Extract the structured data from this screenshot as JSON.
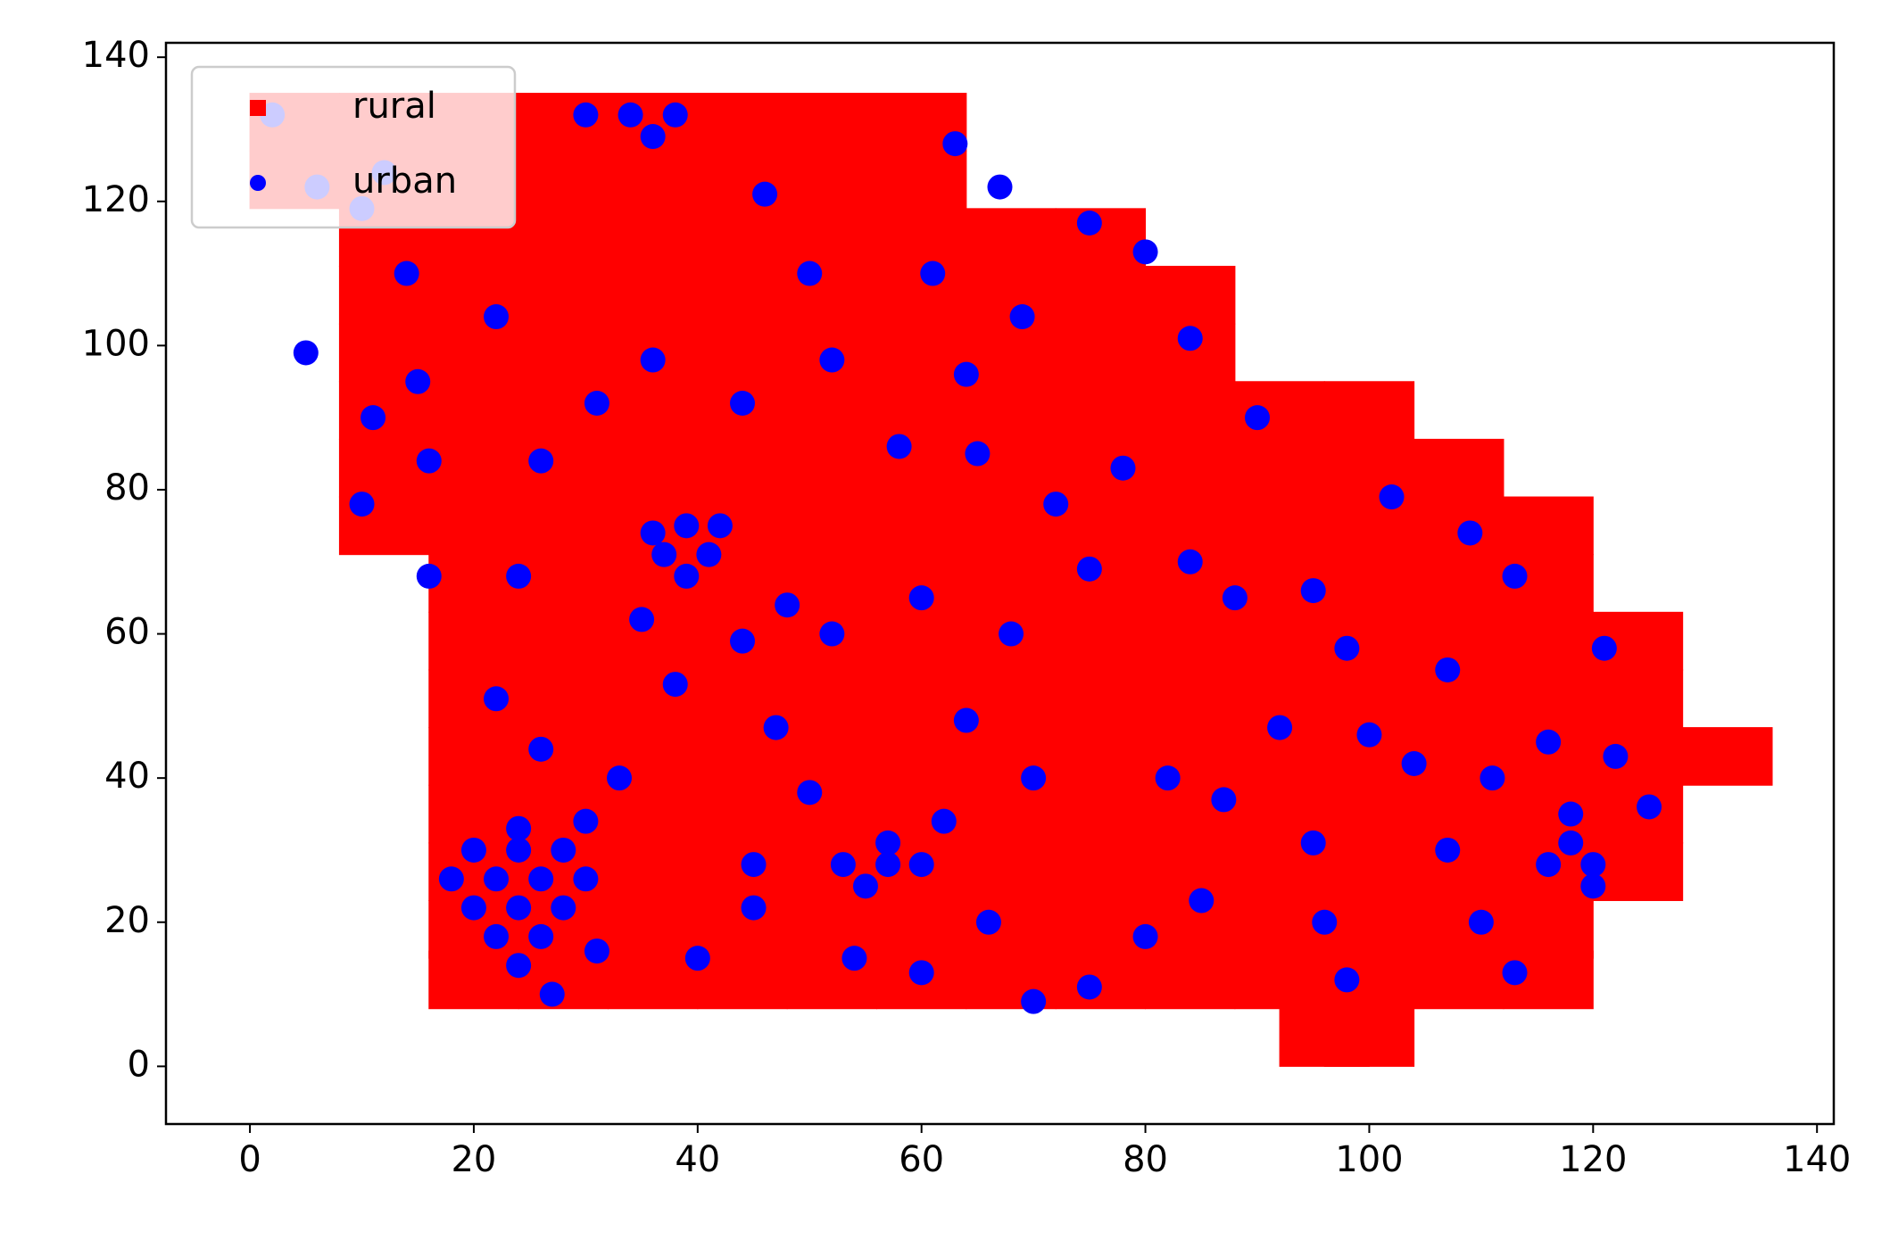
{
  "chart_data": {
    "type": "scatter",
    "xlim": [
      -7.5,
      141.5
    ],
    "ylim": [
      -8,
      142
    ],
    "xticks": [
      0,
      20,
      40,
      60,
      80,
      100,
      120,
      140
    ],
    "yticks": [
      0,
      20,
      40,
      60,
      80,
      100,
      120,
      140
    ],
    "legend": "upper left",
    "series": [
      {
        "name": "rural",
        "color": "#ff0000",
        "marker": "square",
        "x": [
          4,
          12,
          20,
          28,
          36,
          44,
          52,
          60,
          4,
          12,
          20,
          28,
          36,
          44,
          52,
          60,
          12,
          20,
          28,
          36,
          44,
          52,
          60,
          68,
          76,
          12,
          20,
          28,
          36,
          44,
          52,
          60,
          68,
          76,
          84,
          12,
          20,
          28,
          36,
          44,
          52,
          60,
          68,
          76,
          84,
          12,
          20,
          28,
          36,
          44,
          52,
          60,
          68,
          76,
          84,
          92,
          100,
          12,
          20,
          28,
          36,
          44,
          52,
          60,
          68,
          76,
          84,
          92,
          100,
          108,
          12,
          20,
          28,
          36,
          44,
          52,
          60,
          68,
          76,
          84,
          92,
          100,
          108,
          116,
          20,
          28,
          36,
          44,
          52,
          60,
          68,
          76,
          84,
          92,
          100,
          108,
          116,
          20,
          28,
          36,
          44,
          52,
          60,
          68,
          76,
          84,
          92,
          100,
          108,
          116,
          124,
          20,
          28,
          36,
          44,
          52,
          60,
          68,
          76,
          84,
          92,
          100,
          108,
          116,
          124,
          20,
          28,
          36,
          44,
          52,
          60,
          68,
          76,
          84,
          92,
          100,
          108,
          116,
          124,
          132,
          20,
          28,
          36,
          44,
          52,
          60,
          68,
          76,
          84,
          92,
          100,
          108,
          116,
          124,
          20,
          28,
          36,
          44,
          52,
          60,
          68,
          76,
          84,
          92,
          100,
          108,
          116,
          124,
          20,
          28,
          36,
          44,
          52,
          60,
          68,
          76,
          84,
          92,
          100,
          108,
          116,
          20,
          28,
          36,
          44,
          52,
          60,
          68,
          76,
          84,
          92,
          100,
          108,
          116,
          96,
          100
        ],
        "y": [
          131,
          131,
          131,
          131,
          131,
          131,
          131,
          131,
          123,
          123,
          123,
          123,
          123,
          123,
          123,
          123,
          115,
          115,
          115,
          115,
          115,
          115,
          115,
          115,
          115,
          107,
          107,
          107,
          107,
          107,
          107,
          107,
          107,
          107,
          107,
          99,
          99,
          99,
          99,
          99,
          99,
          99,
          99,
          99,
          99,
          91,
          91,
          91,
          91,
          91,
          91,
          91,
          91,
          91,
          91,
          91,
          91,
          83,
          83,
          83,
          83,
          83,
          83,
          83,
          83,
          83,
          83,
          83,
          83,
          83,
          75,
          75,
          75,
          75,
          75,
          75,
          75,
          75,
          75,
          75,
          75,
          75,
          75,
          75,
          67,
          67,
          67,
          67,
          67,
          67,
          67,
          67,
          67,
          67,
          67,
          67,
          67,
          59,
          59,
          59,
          59,
          59,
          59,
          59,
          59,
          59,
          59,
          59,
          59,
          59,
          59,
          51,
          51,
          51,
          51,
          51,
          51,
          51,
          51,
          51,
          51,
          51,
          51,
          51,
          51,
          43,
          43,
          43,
          43,
          43,
          43,
          43,
          43,
          43,
          43,
          43,
          43,
          43,
          43,
          43,
          35,
          35,
          35,
          35,
          35,
          35,
          35,
          35,
          35,
          35,
          35,
          35,
          35,
          35,
          27,
          27,
          27,
          27,
          27,
          27,
          27,
          27,
          27,
          27,
          27,
          27,
          27,
          27,
          19,
          19,
          19,
          19,
          19,
          19,
          19,
          19,
          19,
          19,
          19,
          19,
          19,
          12,
          12,
          12,
          12,
          12,
          12,
          12,
          12,
          12,
          12,
          12,
          12,
          12,
          4,
          4
        ]
      },
      {
        "name": "urban",
        "color": "#0000ff",
        "marker": "circle",
        "x": [
          20,
          24,
          28,
          18,
          22,
          26,
          30,
          20,
          24,
          28,
          22,
          26,
          24,
          24,
          37,
          41,
          39,
          39,
          36,
          42,
          53,
          57,
          60,
          55,
          57,
          116,
          120,
          118,
          120,
          118,
          30,
          34,
          38,
          36,
          2,
          6,
          12,
          10,
          5,
          14,
          22,
          15,
          11,
          10,
          16,
          26,
          16,
          24,
          22,
          26,
          33,
          30,
          31,
          27,
          45,
          40,
          45,
          35,
          44,
          48,
          52,
          50,
          47,
          38,
          31,
          36,
          44,
          52,
          50,
          46,
          61,
          64,
          69,
          67,
          63,
          75,
          80,
          84,
          90,
          84,
          75,
          78,
          88,
          92,
          98,
          100,
          95,
          102,
          109,
          113,
          121,
          107,
          104,
          111,
          116,
          122,
          125,
          107,
          110,
          113,
          98,
          96,
          85,
          80,
          75,
          70,
          64,
          62,
          66,
          70,
          60,
          54,
          82,
          87,
          95,
          68,
          60,
          72,
          65,
          58
        ],
        "y": [
          22,
          22,
          22,
          26,
          26,
          26,
          26,
          30,
          30,
          30,
          18,
          18,
          33,
          14,
          71,
          71,
          75,
          68,
          74,
          75,
          28,
          28,
          28,
          25,
          31,
          28,
          28,
          31,
          25,
          35,
          132,
          132,
          132,
          129,
          132,
          122,
          124,
          119,
          99,
          110,
          104,
          95,
          90,
          78,
          84,
          84,
          68,
          68,
          51,
          44,
          40,
          34,
          16,
          10,
          28,
          15,
          22,
          62,
          59,
          64,
          60,
          38,
          47,
          53,
          92,
          98,
          92,
          98,
          110,
          121,
          110,
          96,
          104,
          122,
          128,
          117,
          113,
          101,
          90,
          70,
          69,
          83,
          65,
          47,
          58,
          46,
          66,
          79,
          74,
          68,
          58,
          55,
          42,
          40,
          45,
          43,
          36,
          30,
          20,
          13,
          12,
          20,
          23,
          18,
          11,
          40,
          48,
          34,
          20,
          9,
          13,
          15,
          40,
          37,
          31,
          60,
          65,
          78,
          85,
          86
        ]
      }
    ]
  }
}
